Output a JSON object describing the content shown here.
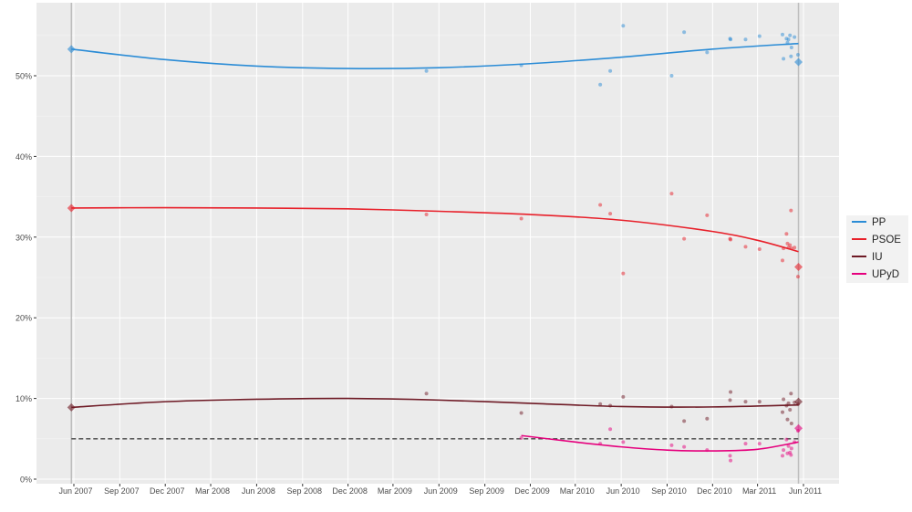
{
  "chart_data": {
    "type": "line",
    "title": "",
    "xlabel": "",
    "ylabel": "",
    "ylim": [
      0,
      58
    ],
    "xlim": [
      "2007-04-01",
      "2011-07-20"
    ],
    "grid": true,
    "legend_position": "right",
    "y_ticks": [
      "0%",
      "10%",
      "20%",
      "30%",
      "40%",
      "50%"
    ],
    "y_tick_values": [
      0,
      10,
      20,
      30,
      40,
      50
    ],
    "x_ticks": [
      {
        "date": "2007-06-01",
        "label": "Jun 2007"
      },
      {
        "date": "2007-09-01",
        "label": "Sep 2007"
      },
      {
        "date": "2007-12-01",
        "label": "Dec 2007"
      },
      {
        "date": "2008-03-01",
        "label": "Mar 2008"
      },
      {
        "date": "2008-06-01",
        "label": "Jun 2008"
      },
      {
        "date": "2008-09-01",
        "label": "Sep 2008"
      },
      {
        "date": "2008-12-01",
        "label": "Dec 2008"
      },
      {
        "date": "2009-03-01",
        "label": "Mar 2009"
      },
      {
        "date": "2009-06-01",
        "label": "Jun 2009"
      },
      {
        "date": "2009-09-01",
        "label": "Sep 2009"
      },
      {
        "date": "2009-12-01",
        "label": "Dec 2009"
      },
      {
        "date": "2010-03-01",
        "label": "Mar 2010"
      },
      {
        "date": "2010-06-01",
        "label": "Jun 2010"
      },
      {
        "date": "2010-09-01",
        "label": "Sep 2010"
      },
      {
        "date": "2010-12-01",
        "label": "Dec 2010"
      },
      {
        "date": "2011-03-01",
        "label": "Mar 2011"
      },
      {
        "date": "2011-06-01",
        "label": "Jun 2011"
      }
    ],
    "threshold": 5,
    "election_dates": [
      "2007-05-27",
      "2011-05-22"
    ],
    "series": [
      {
        "name": "PP",
        "color": "#2b8cd6",
        "results": [
          53.3,
          51.7
        ],
        "trend": [
          [
            "2007-05-27",
            53.3
          ],
          [
            "2007-12-01",
            52.0
          ],
          [
            "2008-06-01",
            51.2
          ],
          [
            "2008-12-01",
            50.9
          ],
          [
            "2009-06-01",
            51.0
          ],
          [
            "2009-12-01",
            51.5
          ],
          [
            "2010-06-01",
            52.3
          ],
          [
            "2010-12-01",
            53.3
          ],
          [
            "2011-05-22",
            54.0
          ]
        ]
      },
      {
        "name": "PSOE",
        "color": "#e8202a",
        "results": [
          33.6,
          26.3
        ],
        "trend": [
          [
            "2007-05-27",
            33.6
          ],
          [
            "2007-12-01",
            33.65
          ],
          [
            "2008-06-01",
            33.6
          ],
          [
            "2008-12-01",
            33.5
          ],
          [
            "2009-06-01",
            33.2
          ],
          [
            "2009-12-01",
            32.8
          ],
          [
            "2010-06-01",
            32.1
          ],
          [
            "2010-12-01",
            30.7
          ],
          [
            "2011-03-01",
            29.6
          ],
          [
            "2011-05-22",
            28.2
          ]
        ]
      },
      {
        "name": "IU",
        "color": "#6e1a25",
        "results": [
          8.9,
          9.6
        ],
        "trend": [
          [
            "2007-05-27",
            8.9
          ],
          [
            "2007-12-01",
            9.6
          ],
          [
            "2008-06-01",
            9.9
          ],
          [
            "2008-12-01",
            10.0
          ],
          [
            "2009-06-01",
            9.8
          ],
          [
            "2009-12-01",
            9.4
          ],
          [
            "2010-06-01",
            9.0
          ],
          [
            "2010-12-01",
            8.95
          ],
          [
            "2011-05-22",
            9.2
          ]
        ]
      },
      {
        "name": "UPyD",
        "color": "#e5007d",
        "results": [
          null,
          6.3
        ],
        "trend": [
          [
            "2009-11-13",
            5.4
          ],
          [
            "2010-03-01",
            4.6
          ],
          [
            "2010-06-01",
            4.0
          ],
          [
            "2010-09-01",
            3.6
          ],
          [
            "2010-12-01",
            3.5
          ],
          [
            "2011-03-01",
            3.7
          ],
          [
            "2011-05-22",
            4.6
          ]
        ]
      }
    ],
    "polls": [
      {
        "date": "2009-05-07",
        "PP": 50.6,
        "PSOE": 32.8,
        "IU": 10.6
      },
      {
        "date": "2009-11-13",
        "PP": 51.3,
        "PSOE": 32.3,
        "IU": 8.2,
        "UPyD": 5.1
      },
      {
        "date": "2010-04-20",
        "PP": 48.9,
        "PSOE": 34.0,
        "IU": 9.3,
        "UPyD": 4.4
      },
      {
        "date": "2010-05-10",
        "PP": 50.6,
        "PSOE": 32.9,
        "IU": 9.1,
        "UPyD": 6.2
      },
      {
        "date": "2010-06-05",
        "PP": 56.2,
        "PSOE": 25.5,
        "IU": 10.2,
        "UPyD": 4.6
      },
      {
        "date": "2010-09-10",
        "PP": 50.0,
        "PSOE": 35.4,
        "IU": 9.0,
        "UPyD": 4.2
      },
      {
        "date": "2010-10-05",
        "PP": 55.4,
        "PSOE": 29.8,
        "IU": 7.2,
        "UPyD": 4.0
      },
      {
        "date": "2010-11-20",
        "PP": 52.9,
        "PSOE": 32.7,
        "IU": 7.5,
        "UPyD": 3.6
      },
      {
        "date": "2011-01-05",
        "PP": 54.6,
        "PSOE": 29.8,
        "IU": 9.8,
        "UPyD": 2.9
      },
      {
        "date": "2011-01-06",
        "PP": 54.5,
        "PSOE": 29.7,
        "IU": 10.8,
        "UPyD": 2.3
      },
      {
        "date": "2011-02-05",
        "PP": 54.5,
        "PSOE": 28.8,
        "IU": 9.6,
        "UPyD": 4.4
      },
      {
        "date": "2011-03-05",
        "PP": 54.9,
        "PSOE": 28.5,
        "IU": 9.6,
        "UPyD": 4.4
      },
      {
        "date": "2011-04-20",
        "PP": 55.1,
        "PSOE": 27.1,
        "IU": 8.3,
        "UPyD": 2.9
      },
      {
        "date": "2011-04-22",
        "PP": 52.1,
        "PSOE": 28.6,
        "IU": 9.9,
        "UPyD": 3.6
      },
      {
        "date": "2011-04-28",
        "PP": 54.6,
        "PSOE": 30.4,
        "IU": 9.1,
        "UPyD": 4.9
      },
      {
        "date": "2011-04-30",
        "PP": 54.1,
        "PSOE": 29.2,
        "IU": 7.4,
        "UPyD": 3.2
      },
      {
        "date": "2011-05-02",
        "PP": 54.5,
        "PSOE": 28.7,
        "IU": 9.4,
        "UPyD": 4.1
      },
      {
        "date": "2011-05-05",
        "PP": 55.0,
        "PSOE": 29.0,
        "IU": 8.6,
        "UPyD": 3.3
      },
      {
        "date": "2011-05-07",
        "PP": 52.4,
        "PSOE": 33.3,
        "IU": 10.6,
        "UPyD": 3.0
      },
      {
        "date": "2011-05-08",
        "PP": 53.5,
        "PSOE": 28.6,
        "IU": 6.9,
        "UPyD": 3.8
      },
      {
        "date": "2011-05-14",
        "PP": 54.8,
        "PSOE": 28.7,
        "IU": 9.5,
        "UPyD": 4.6
      },
      {
        "date": "2011-05-21",
        "PP": 52.6,
        "PSOE": 25.1,
        "IU": 9.3,
        "UPyD": 6.0
      }
    ]
  }
}
